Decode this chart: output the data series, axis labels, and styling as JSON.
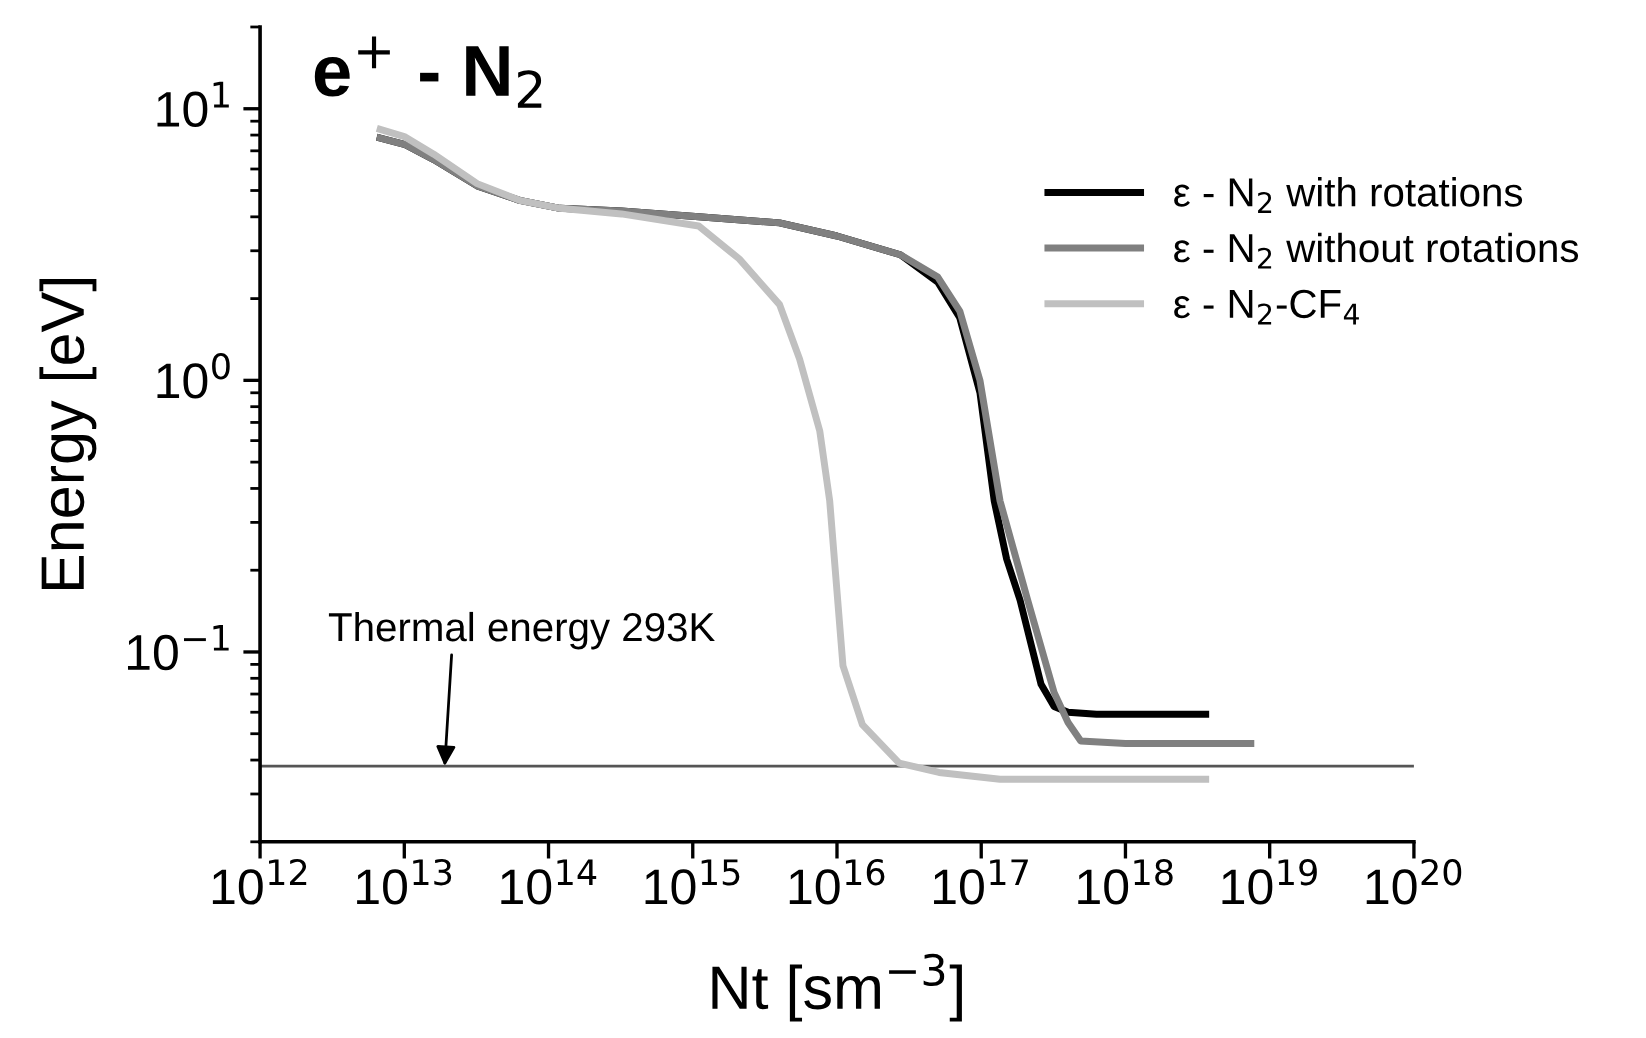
{
  "chart_data": {
    "type": "line",
    "title": "e$^{+}$ - N$_{2}$",
    "xlabel": "Nt [sm$^{−3}$]",
    "ylabel": "Energy [eV]",
    "log": "xy",
    "xlim": [
      1000000000000.0,
      1e+20
    ],
    "ylim": [
      0.02,
      20
    ],
    "xticks": [
      {
        "value": 1000000000000.0,
        "label": "10$^{12}$"
      },
      {
        "value": 10000000000000.0,
        "label": "10$^{13}$"
      },
      {
        "value": 100000000000000.0,
        "label": "10$^{14}$"
      },
      {
        "value": 1000000000000000.0,
        "label": "10$^{15}$"
      },
      {
        "value": 1e+16,
        "label": "10$^{16}$"
      },
      {
        "value": 1e+17,
        "label": "10$^{17}$"
      },
      {
        "value": 1e+18,
        "label": "10$^{18}$"
      },
      {
        "value": 1e+19,
        "label": "10$^{19}$"
      },
      {
        "value": 1e+20,
        "label": "10$^{20}$"
      }
    ],
    "yticks": [
      {
        "value": 0.1,
        "label": "10$^{−1}$"
      },
      {
        "value": 1,
        "label": "10$^{0}$"
      },
      {
        "value": 10,
        "label": "10$^{1}$"
      }
    ],
    "grid": false,
    "legend": "top right",
    "line_style": "solid",
    "marker": "none",
    "series": [
      {
        "name": "ε - N$_{2}$ with rotations",
        "color": "#000000",
        "x": [
          6800000000000.0,
          10000000000000.0,
          16000000000000.0,
          32000000000000.0,
          63000000000000.0,
          120000000000000.0,
          320000000000000.0,
          1100000000000000.0,
          4000000000000000.0,
          1e+16,
          2.75e+16,
          5e+16,
          7.1e+16,
          9.8e+16,
          1.23e+17,
          1.5e+17,
          1.86e+17,
          2.6e+17,
          3.2e+17,
          4e+17,
          6.3e+17,
          1.6e+18,
          3.6e+18
        ],
        "values": [
          7.8,
          7.4,
          6.5,
          5.2,
          4.6,
          4.3,
          4.2,
          4.0,
          3.8,
          3.4,
          2.9,
          2.3,
          1.7,
          0.9,
          0.36,
          0.22,
          0.155,
          0.076,
          0.063,
          0.06,
          0.059,
          0.059,
          0.059
        ]
      },
      {
        "name": "ε - N$_{2}$ without rotations",
        "color": "#808080",
        "x": [
          6800000000000.0,
          10000000000000.0,
          16000000000000.0,
          32000000000000.0,
          63000000000000.0,
          120000000000000.0,
          320000000000000.0,
          1100000000000000.0,
          4000000000000000.0,
          1e+16,
          2.75e+16,
          5e+16,
          7.1e+16,
          9.8e+16,
          1.35e+17,
          2.1e+17,
          3.2e+17,
          4e+17,
          4.9e+17,
          1e+18,
          3.2e+18,
          7.4e+18
        ],
        "values": [
          7.8,
          7.4,
          6.5,
          5.2,
          4.6,
          4.3,
          4.2,
          4.0,
          3.8,
          3.4,
          2.9,
          2.4,
          1.8,
          1.0,
          0.36,
          0.155,
          0.071,
          0.055,
          0.047,
          0.046,
          0.046,
          0.046
        ]
      },
      {
        "name": "ε - N$_{2}$-CF$_{4}$",
        "color": "#c0c0c0",
        "x": [
          6800000000000.0,
          10000000000000.0,
          16000000000000.0,
          32000000000000.0,
          63000000000000.0,
          120000000000000.0,
          320000000000000.0,
          1100000000000000.0,
          2100000000000000.0,
          4000000000000000.0,
          5500000000000000.0,
          7600000000000000.0,
          8900000000000000.0,
          1.1e+16,
          1.5e+16,
          2.7e+16,
          5.1e+16,
          1.35e+17,
          6.3e+17,
          3.6e+18
        ],
        "values": [
          8.4,
          7.9,
          6.8,
          5.3,
          4.6,
          4.3,
          4.1,
          3.7,
          2.8,
          1.9,
          1.2,
          0.65,
          0.36,
          0.089,
          0.054,
          0.039,
          0.036,
          0.034,
          0.034,
          0.034
        ]
      }
    ],
    "ref_lines": [
      {
        "axis": "y",
        "value": 0.038,
        "label": "Thermal energy 293K",
        "color": "#555555",
        "line_style": "solid"
      }
    ]
  }
}
